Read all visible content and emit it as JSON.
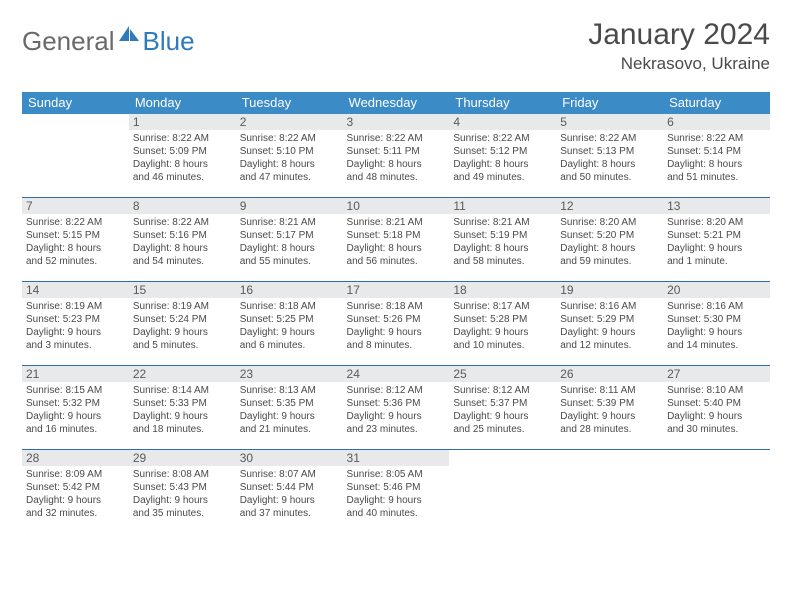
{
  "logo": {
    "part1": "General",
    "part2": "Blue"
  },
  "title": "January 2024",
  "location": "Nekrasovo, Ukraine",
  "columns": [
    "Sunday",
    "Monday",
    "Tuesday",
    "Wednesday",
    "Thursday",
    "Friday",
    "Saturday"
  ],
  "colors": {
    "header_bg": "#3b8bc6",
    "header_text": "#ffffff",
    "daynum_bg": "#e8e9ea",
    "row_border": "#2f6fa3",
    "logo_blue": "#2f7ab8",
    "body_text": "#4a4a4a"
  },
  "weeks": [
    [
      null,
      {
        "n": "1",
        "sr": "Sunrise: 8:22 AM",
        "ss": "Sunset: 5:09 PM",
        "d1": "Daylight: 8 hours",
        "d2": "and 46 minutes."
      },
      {
        "n": "2",
        "sr": "Sunrise: 8:22 AM",
        "ss": "Sunset: 5:10 PM",
        "d1": "Daylight: 8 hours",
        "d2": "and 47 minutes."
      },
      {
        "n": "3",
        "sr": "Sunrise: 8:22 AM",
        "ss": "Sunset: 5:11 PM",
        "d1": "Daylight: 8 hours",
        "d2": "and 48 minutes."
      },
      {
        "n": "4",
        "sr": "Sunrise: 8:22 AM",
        "ss": "Sunset: 5:12 PM",
        "d1": "Daylight: 8 hours",
        "d2": "and 49 minutes."
      },
      {
        "n": "5",
        "sr": "Sunrise: 8:22 AM",
        "ss": "Sunset: 5:13 PM",
        "d1": "Daylight: 8 hours",
        "d2": "and 50 minutes."
      },
      {
        "n": "6",
        "sr": "Sunrise: 8:22 AM",
        "ss": "Sunset: 5:14 PM",
        "d1": "Daylight: 8 hours",
        "d2": "and 51 minutes."
      }
    ],
    [
      {
        "n": "7",
        "sr": "Sunrise: 8:22 AM",
        "ss": "Sunset: 5:15 PM",
        "d1": "Daylight: 8 hours",
        "d2": "and 52 minutes."
      },
      {
        "n": "8",
        "sr": "Sunrise: 8:22 AM",
        "ss": "Sunset: 5:16 PM",
        "d1": "Daylight: 8 hours",
        "d2": "and 54 minutes."
      },
      {
        "n": "9",
        "sr": "Sunrise: 8:21 AM",
        "ss": "Sunset: 5:17 PM",
        "d1": "Daylight: 8 hours",
        "d2": "and 55 minutes."
      },
      {
        "n": "10",
        "sr": "Sunrise: 8:21 AM",
        "ss": "Sunset: 5:18 PM",
        "d1": "Daylight: 8 hours",
        "d2": "and 56 minutes."
      },
      {
        "n": "11",
        "sr": "Sunrise: 8:21 AM",
        "ss": "Sunset: 5:19 PM",
        "d1": "Daylight: 8 hours",
        "d2": "and 58 minutes."
      },
      {
        "n": "12",
        "sr": "Sunrise: 8:20 AM",
        "ss": "Sunset: 5:20 PM",
        "d1": "Daylight: 8 hours",
        "d2": "and 59 minutes."
      },
      {
        "n": "13",
        "sr": "Sunrise: 8:20 AM",
        "ss": "Sunset: 5:21 PM",
        "d1": "Daylight: 9 hours",
        "d2": "and 1 minute."
      }
    ],
    [
      {
        "n": "14",
        "sr": "Sunrise: 8:19 AM",
        "ss": "Sunset: 5:23 PM",
        "d1": "Daylight: 9 hours",
        "d2": "and 3 minutes."
      },
      {
        "n": "15",
        "sr": "Sunrise: 8:19 AM",
        "ss": "Sunset: 5:24 PM",
        "d1": "Daylight: 9 hours",
        "d2": "and 5 minutes."
      },
      {
        "n": "16",
        "sr": "Sunrise: 8:18 AM",
        "ss": "Sunset: 5:25 PM",
        "d1": "Daylight: 9 hours",
        "d2": "and 6 minutes."
      },
      {
        "n": "17",
        "sr": "Sunrise: 8:18 AM",
        "ss": "Sunset: 5:26 PM",
        "d1": "Daylight: 9 hours",
        "d2": "and 8 minutes."
      },
      {
        "n": "18",
        "sr": "Sunrise: 8:17 AM",
        "ss": "Sunset: 5:28 PM",
        "d1": "Daylight: 9 hours",
        "d2": "and 10 minutes."
      },
      {
        "n": "19",
        "sr": "Sunrise: 8:16 AM",
        "ss": "Sunset: 5:29 PM",
        "d1": "Daylight: 9 hours",
        "d2": "and 12 minutes."
      },
      {
        "n": "20",
        "sr": "Sunrise: 8:16 AM",
        "ss": "Sunset: 5:30 PM",
        "d1": "Daylight: 9 hours",
        "d2": "and 14 minutes."
      }
    ],
    [
      {
        "n": "21",
        "sr": "Sunrise: 8:15 AM",
        "ss": "Sunset: 5:32 PM",
        "d1": "Daylight: 9 hours",
        "d2": "and 16 minutes."
      },
      {
        "n": "22",
        "sr": "Sunrise: 8:14 AM",
        "ss": "Sunset: 5:33 PM",
        "d1": "Daylight: 9 hours",
        "d2": "and 18 minutes."
      },
      {
        "n": "23",
        "sr": "Sunrise: 8:13 AM",
        "ss": "Sunset: 5:35 PM",
        "d1": "Daylight: 9 hours",
        "d2": "and 21 minutes."
      },
      {
        "n": "24",
        "sr": "Sunrise: 8:12 AM",
        "ss": "Sunset: 5:36 PM",
        "d1": "Daylight: 9 hours",
        "d2": "and 23 minutes."
      },
      {
        "n": "25",
        "sr": "Sunrise: 8:12 AM",
        "ss": "Sunset: 5:37 PM",
        "d1": "Daylight: 9 hours",
        "d2": "and 25 minutes."
      },
      {
        "n": "26",
        "sr": "Sunrise: 8:11 AM",
        "ss": "Sunset: 5:39 PM",
        "d1": "Daylight: 9 hours",
        "d2": "and 28 minutes."
      },
      {
        "n": "27",
        "sr": "Sunrise: 8:10 AM",
        "ss": "Sunset: 5:40 PM",
        "d1": "Daylight: 9 hours",
        "d2": "and 30 minutes."
      }
    ],
    [
      {
        "n": "28",
        "sr": "Sunrise: 8:09 AM",
        "ss": "Sunset: 5:42 PM",
        "d1": "Daylight: 9 hours",
        "d2": "and 32 minutes."
      },
      {
        "n": "29",
        "sr": "Sunrise: 8:08 AM",
        "ss": "Sunset: 5:43 PM",
        "d1": "Daylight: 9 hours",
        "d2": "and 35 minutes."
      },
      {
        "n": "30",
        "sr": "Sunrise: 8:07 AM",
        "ss": "Sunset: 5:44 PM",
        "d1": "Daylight: 9 hours",
        "d2": "and 37 minutes."
      },
      {
        "n": "31",
        "sr": "Sunrise: 8:05 AM",
        "ss": "Sunset: 5:46 PM",
        "d1": "Daylight: 9 hours",
        "d2": "and 40 minutes."
      },
      null,
      null,
      null
    ]
  ]
}
